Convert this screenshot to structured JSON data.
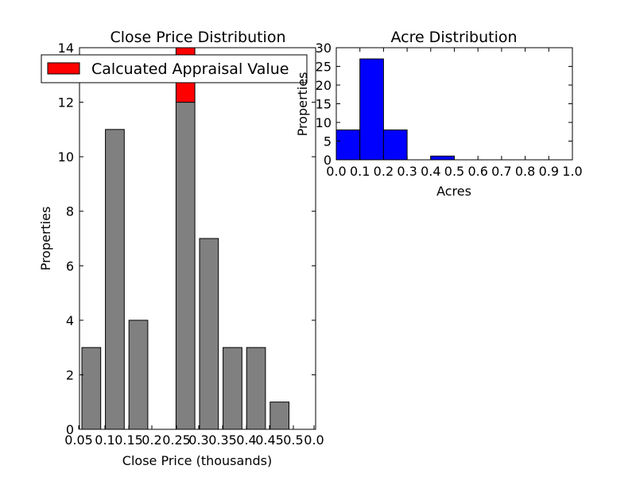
{
  "chart_data": [
    {
      "type": "bar",
      "title": "Close Price Distribution",
      "xlabel": "Close Price (thousands)",
      "ylabel": "Properties",
      "x_tick_labels": [
        "0.05",
        "0.1",
        "0.15",
        "0.2",
        "0.25",
        "0.3",
        "0.35",
        "0.4",
        "0.45",
        "0.5",
        "0.0"
      ],
      "y_ticks": [
        0,
        2,
        4,
        6,
        8,
        10,
        12,
        14
      ],
      "ylim": [
        0,
        14
      ],
      "grid": false,
      "legend": {
        "placement": "top-left",
        "entries": [
          {
            "name": "Calcuated Appraisal Value",
            "color": "#ff0000"
          }
        ]
      },
      "bars": [
        {
          "index": 0,
          "value": 3,
          "color": "#808080"
        },
        {
          "index": 1,
          "value": 11,
          "color": "#808080"
        },
        {
          "index": 2,
          "value": 4,
          "color": "#808080"
        },
        {
          "index": 3,
          "value": 0,
          "color": "#808080"
        },
        {
          "index": 4,
          "value": 12,
          "color": "#808080"
        },
        {
          "index": 5,
          "value": 7,
          "color": "#808080"
        },
        {
          "index": 6,
          "value": 3,
          "color": "#808080"
        },
        {
          "index": 7,
          "value": 3,
          "color": "#808080"
        },
        {
          "index": 8,
          "value": 1,
          "color": "#808080"
        },
        {
          "index": 9,
          "value": 0,
          "color": "#808080"
        }
      ],
      "highlight": {
        "name": "Calcuated Appraisal Value",
        "bar_index": 4,
        "base": 12,
        "top": 14,
        "color": "#ff0000"
      }
    },
    {
      "type": "bar",
      "title": "Acre Distribution",
      "xlabel": "Acres",
      "ylabel": "Properties",
      "x_ticks": [
        0.0,
        0.1,
        0.2,
        0.3,
        0.4,
        0.5,
        0.6,
        0.7,
        0.8,
        0.9,
        1.0
      ],
      "x_tick_labels": [
        "0.0",
        "0.1",
        "0.2",
        "0.3",
        "0.4",
        "0.5",
        "0.6",
        "0.7",
        "0.8",
        "0.9",
        "1.0"
      ],
      "y_ticks": [
        0,
        5,
        10,
        15,
        20,
        25,
        30
      ],
      "xlim": [
        0.0,
        1.0
      ],
      "ylim": [
        0,
        30
      ],
      "grid": false,
      "bins": [
        {
          "x0": 0.0,
          "x1": 0.1,
          "value": 8
        },
        {
          "x0": 0.1,
          "x1": 0.2,
          "value": 27
        },
        {
          "x0": 0.2,
          "x1": 0.3,
          "value": 8
        },
        {
          "x0": 0.3,
          "x1": 0.4,
          "value": 0
        },
        {
          "x0": 0.4,
          "x1": 0.5,
          "value": 1
        }
      ],
      "bar_color": "#0000ff"
    }
  ]
}
